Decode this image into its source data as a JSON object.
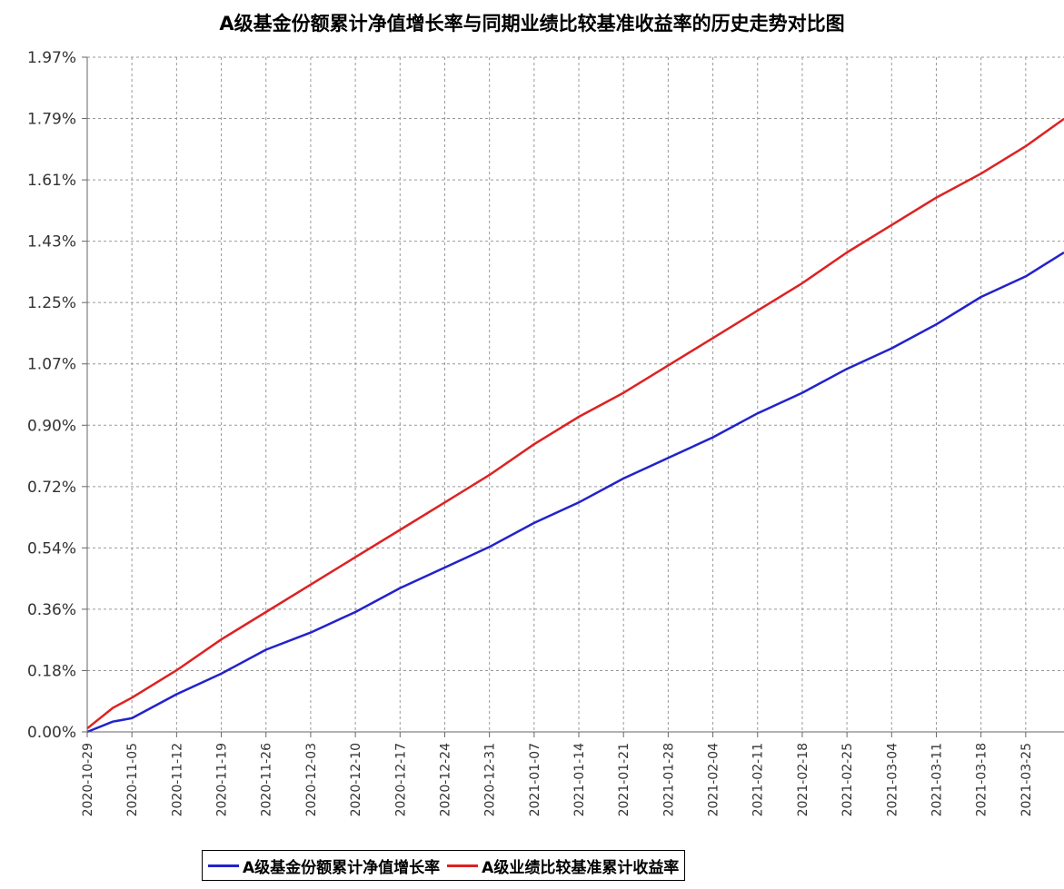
{
  "chart_data": {
    "type": "line",
    "title": "A级基金份额累计净值增长率与同期业绩比较基准收益率的历史走势对比图",
    "y_ticks": [
      "0.00%",
      "0.18%",
      "0.36%",
      "0.54%",
      "0.72%",
      "0.90%",
      "1.07%",
      "1.25%",
      "1.43%",
      "1.61%",
      "1.79%",
      "1.97%"
    ],
    "ylim": [
      0,
      1.97
    ],
    "x_ticks": [
      "2020-10-29",
      "2020-11-05",
      "2020-11-12",
      "2020-11-19",
      "2020-11-26",
      "2020-12-03",
      "2020-12-10",
      "2020-12-17",
      "2020-12-24",
      "2020-12-31",
      "2021-01-07",
      "2021-01-14",
      "2021-01-21",
      "2021-01-28",
      "2021-02-04",
      "2021-02-11",
      "2021-02-18",
      "2021-02-25",
      "2021-03-04",
      "2021-03-11",
      "2021-03-18",
      "2021-03-25"
    ],
    "xlim": [
      "2020-10-29",
      "2021-03-31"
    ],
    "grid": true,
    "legend_position": "bottom",
    "series": [
      {
        "name": "A级基金份额累计净值增长率",
        "color": "#2222cc",
        "points": [
          [
            "2020-10-29",
            0.0
          ],
          [
            "2020-11-02",
            0.03
          ],
          [
            "2020-11-05",
            0.04
          ],
          [
            "2020-11-12",
            0.11
          ],
          [
            "2020-11-19",
            0.17
          ],
          [
            "2020-11-26",
            0.24
          ],
          [
            "2020-12-03",
            0.29
          ],
          [
            "2020-12-10",
            0.35
          ],
          [
            "2020-12-17",
            0.42
          ],
          [
            "2020-12-24",
            0.48
          ],
          [
            "2020-12-31",
            0.54
          ],
          [
            "2021-01-07",
            0.61
          ],
          [
            "2021-01-14",
            0.67
          ],
          [
            "2021-01-21",
            0.74
          ],
          [
            "2021-01-28",
            0.8
          ],
          [
            "2021-02-04",
            0.86
          ],
          [
            "2021-02-11",
            0.93
          ],
          [
            "2021-02-18",
            0.99
          ],
          [
            "2021-02-25",
            1.06
          ],
          [
            "2021-03-04",
            1.12
          ],
          [
            "2021-03-11",
            1.19
          ],
          [
            "2021-03-18",
            1.27
          ],
          [
            "2021-03-25",
            1.33
          ],
          [
            "2021-03-31",
            1.4
          ]
        ]
      },
      {
        "name": "A级业绩比较基准累计收益率",
        "color": "#dd2222",
        "points": [
          [
            "2020-10-29",
            0.01
          ],
          [
            "2020-11-02",
            0.07
          ],
          [
            "2020-11-05",
            0.1
          ],
          [
            "2020-11-12",
            0.18
          ],
          [
            "2020-11-19",
            0.27
          ],
          [
            "2020-11-26",
            0.35
          ],
          [
            "2020-12-03",
            0.43
          ],
          [
            "2020-12-10",
            0.51
          ],
          [
            "2020-12-17",
            0.59
          ],
          [
            "2020-12-24",
            0.67
          ],
          [
            "2020-12-31",
            0.75
          ],
          [
            "2021-01-07",
            0.84
          ],
          [
            "2021-01-14",
            0.92
          ],
          [
            "2021-01-21",
            0.99
          ],
          [
            "2021-01-28",
            1.07
          ],
          [
            "2021-02-04",
            1.15
          ],
          [
            "2021-02-11",
            1.23
          ],
          [
            "2021-02-18",
            1.31
          ],
          [
            "2021-02-25",
            1.4
          ],
          [
            "2021-03-04",
            1.48
          ],
          [
            "2021-03-11",
            1.56
          ],
          [
            "2021-03-18",
            1.63
          ],
          [
            "2021-03-25",
            1.71
          ],
          [
            "2021-03-31",
            1.79
          ]
        ]
      }
    ]
  }
}
